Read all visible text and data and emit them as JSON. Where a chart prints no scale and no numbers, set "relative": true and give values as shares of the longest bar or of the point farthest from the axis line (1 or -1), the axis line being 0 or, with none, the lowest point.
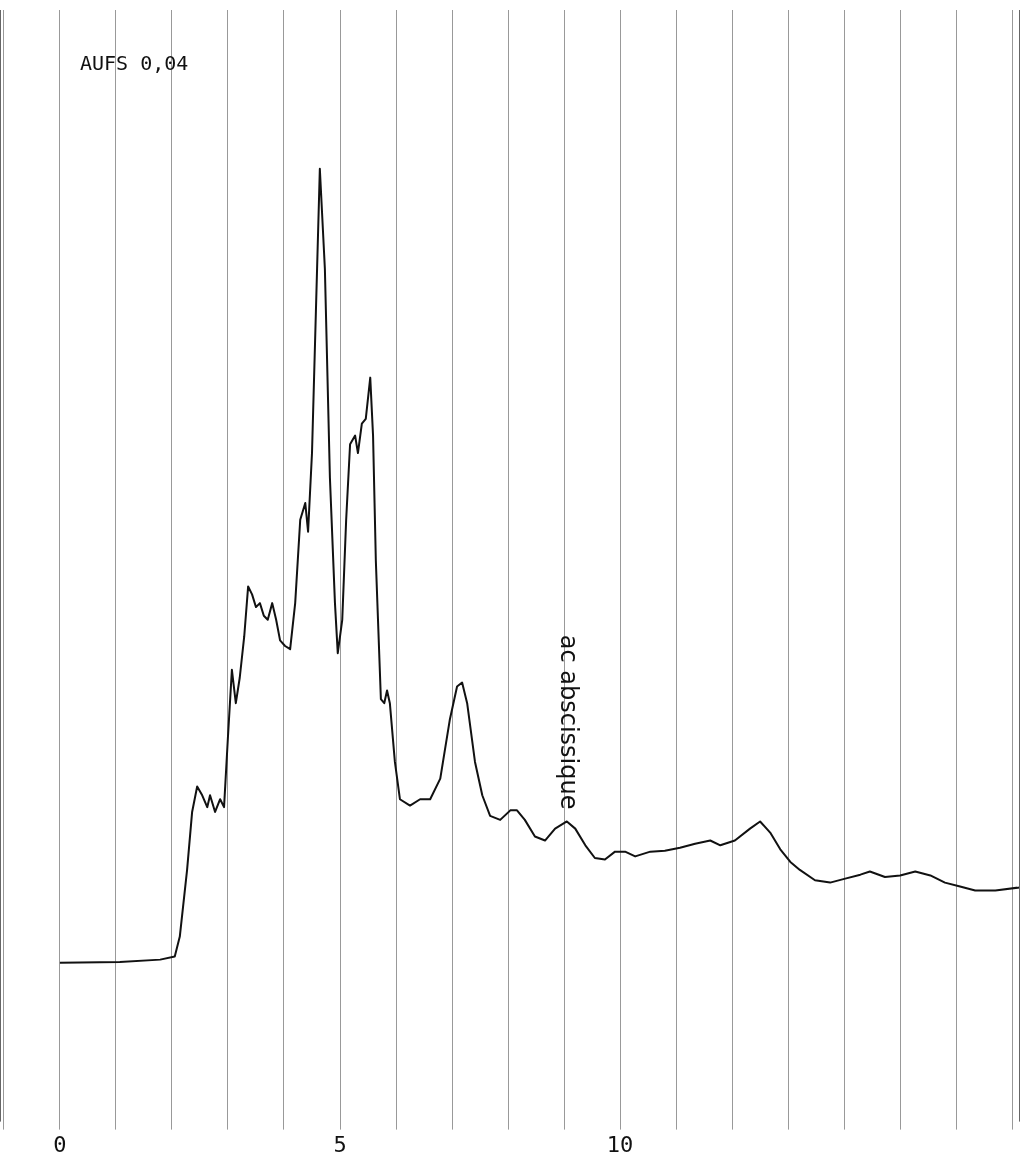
{
  "chart_data": {
    "type": "line",
    "relative": true,
    "marker": "none",
    "line_style": "solid",
    "grid": "x",
    "legend": false,
    "xlim": [
      -1.07,
      17.14
    ],
    "xticks": [
      {
        "value": -1,
        "label": null
      },
      0,
      {
        "value": 1,
        "label": null
      },
      {
        "value": 2,
        "label": null
      },
      {
        "value": 3,
        "label": null
      },
      {
        "value": 4,
        "label": null
      },
      5,
      {
        "value": 6,
        "label": null
      },
      {
        "value": 7,
        "label": null
      },
      {
        "value": 8,
        "label": null
      },
      {
        "value": 9,
        "label": null
      },
      10,
      {
        "value": 11,
        "label": null
      },
      {
        "value": 12,
        "label": null
      },
      {
        "value": 13,
        "label": null
      },
      {
        "value": 14,
        "label": null
      },
      {
        "value": 15,
        "label": null
      },
      {
        "value": 16,
        "label": null
      },
      {
        "value": 17,
        "label": null
      }
    ],
    "annotations": [
      "AUFS 0,04",
      {
        "text": "ac abscissique",
        "x": 9.05,
        "y": 0.178
      }
    ],
    "series": [
      {
        "color": "#111111",
        "x": [
          0,
          1.07,
          1.79,
          2.05,
          2.14,
          2.27,
          2.36,
          2.45,
          2.54,
          2.63,
          2.68,
          2.77,
          2.86,
          2.93,
          3.0,
          3.07,
          3.14,
          3.21,
          3.29,
          3.36,
          3.43,
          3.5,
          3.57,
          3.64,
          3.71,
          3.79,
          3.86,
          3.93,
          4.02,
          4.11,
          4.2,
          4.29,
          4.38,
          4.43,
          4.5,
          4.57,
          4.64,
          4.73,
          4.82,
          4.91,
          4.96,
          5.04,
          5.11,
          5.18,
          5.27,
          5.32,
          5.39,
          5.46,
          5.54,
          5.59,
          5.64,
          5.73,
          5.79,
          5.84,
          5.89,
          5.98,
          6.07,
          6.25,
          6.43,
          6.61,
          6.79,
          6.96,
          7.09,
          7.18,
          7.27,
          7.41,
          7.54,
          7.68,
          7.86,
          8.04,
          8.16,
          8.3,
          8.48,
          8.66,
          8.84,
          9.05,
          9.2,
          9.38,
          9.55,
          9.73,
          9.91,
          10.09,
          10.27,
          10.54,
          10.8,
          11.07,
          11.34,
          11.61,
          11.79,
          12.05,
          12.32,
          12.5,
          12.68,
          12.86,
          13.04,
          13.21,
          13.48,
          13.75,
          14.02,
          14.29,
          14.46,
          14.73,
          15.0,
          15.27,
          15.54,
          15.8,
          16.07,
          16.34,
          16.7,
          17.14
        ],
        "values": [
          0,
          0.001,
          0.004,
          0.008,
          0.033,
          0.117,
          0.19,
          0.222,
          0.211,
          0.196,
          0.211,
          0.19,
          0.206,
          0.196,
          0.285,
          0.369,
          0.327,
          0.359,
          0.411,
          0.474,
          0.464,
          0.448,
          0.453,
          0.437,
          0.432,
          0.453,
          0.432,
          0.406,
          0.399,
          0.395,
          0.453,
          0.558,
          0.579,
          0.543,
          0.642,
          0.821,
          1,
          0.874,
          0.611,
          0.453,
          0.39,
          0.432,
          0.558,
          0.653,
          0.664,
          0.642,
          0.679,
          0.685,
          0.737,
          0.664,
          0.506,
          0.332,
          0.327,
          0.343,
          0.327,
          0.253,
          0.206,
          0.198,
          0.206,
          0.206,
          0.232,
          0.306,
          0.348,
          0.353,
          0.327,
          0.253,
          0.211,
          0.185,
          0.18,
          0.192,
          0.192,
          0.18,
          0.159,
          0.154,
          0.169,
          0.178,
          0.169,
          0.148,
          0.132,
          0.13,
          0.14,
          0.14,
          0.134,
          0.14,
          0.141,
          0.145,
          0.15,
          0.154,
          0.148,
          0.154,
          0.169,
          0.178,
          0.164,
          0.143,
          0.127,
          0.117,
          0.104,
          0.101,
          0.106,
          0.111,
          0.115,
          0.108,
          0.11,
          0.115,
          0.11,
          0.101,
          0.096,
          0.091,
          0.091,
          0.095
        ]
      }
    ]
  }
}
